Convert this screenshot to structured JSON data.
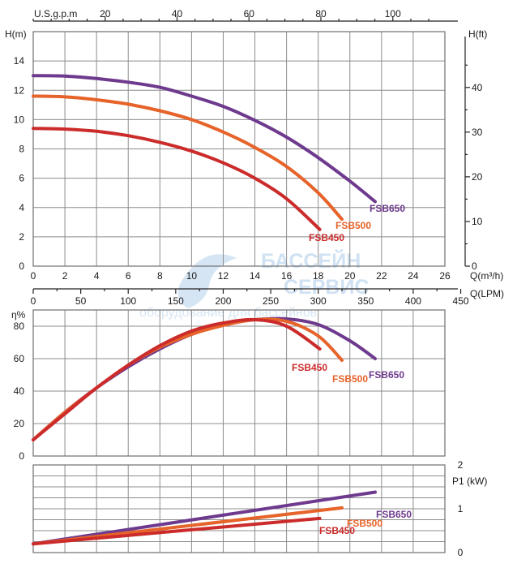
{
  "chart_data": [
    {
      "type": "line",
      "panel": "head",
      "xlabel": "Q(m³/h)",
      "xlim": [
        0,
        26
      ],
      "x_ticks": [
        0,
        2,
        4,
        6,
        8,
        10,
        12,
        14,
        16,
        18,
        20,
        22,
        24,
        26
      ],
      "ylabel": "H(m)",
      "ylim": [
        0,
        16
      ],
      "y_ticks": [
        0,
        2,
        4,
        6,
        8,
        10,
        12,
        14
      ],
      "y2label": "H(ft)",
      "y2_ticks": [
        0,
        10,
        20,
        30,
        40
      ],
      "top_axis_label": "U.S.g.p.m",
      "top_ticks": [
        20,
        40,
        60,
        80,
        100
      ],
      "bottom2_label": "Q(LPM)",
      "bottom2_ticks": [
        0,
        50,
        100,
        150,
        200,
        250,
        300,
        350,
        400,
        450
      ],
      "grid": true,
      "series": [
        {
          "name": "FSB650",
          "color": "#6e3a8e",
          "x": [
            0,
            2,
            4,
            6,
            8,
            10,
            12,
            14,
            16,
            18,
            20,
            21.6
          ],
          "y": [
            13.0,
            12.97,
            12.8,
            12.55,
            12.2,
            11.6,
            10.9,
            9.95,
            8.8,
            7.4,
            5.8,
            4.4
          ]
        },
        {
          "name": "FSB500",
          "color": "#e6632a",
          "x": [
            0,
            2,
            4,
            6,
            8,
            10,
            12,
            14,
            16,
            18,
            19.5
          ],
          "y": [
            11.6,
            11.55,
            11.35,
            11.05,
            10.6,
            10.0,
            9.15,
            8.1,
            6.8,
            5.0,
            3.2
          ]
        },
        {
          "name": "FSB450",
          "color": "#cc2b2b",
          "x": [
            0,
            2,
            4,
            6,
            8,
            10,
            12,
            14,
            16,
            18.1
          ],
          "y": [
            9.4,
            9.35,
            9.2,
            8.9,
            8.45,
            7.85,
            7.05,
            6.0,
            4.6,
            2.5
          ]
        }
      ],
      "labels": [
        "FSB650",
        "FSB500",
        "FSB450"
      ]
    },
    {
      "type": "line",
      "panel": "efficiency",
      "ylabel": "η%",
      "ylim": [
        0,
        90
      ],
      "y_ticks": [
        0,
        20,
        40,
        60,
        80
      ],
      "grid": true,
      "series": [
        {
          "name": "FSB650",
          "color": "#6e3a8e",
          "x": [
            0,
            2,
            4,
            6,
            8,
            10,
            12,
            14,
            16,
            18,
            20,
            21.6
          ],
          "y": [
            10,
            27,
            42,
            55,
            66,
            75,
            81,
            84,
            84.5,
            81,
            71,
            60
          ]
        },
        {
          "name": "FSB500",
          "color": "#e6632a",
          "x": [
            0,
            2,
            4,
            6,
            8,
            10,
            12,
            14,
            16,
            18,
            19.5
          ],
          "y": [
            10,
            27,
            42,
            56,
            67,
            75,
            80.5,
            84,
            83,
            74,
            59
          ]
        },
        {
          "name": "FSB450",
          "color": "#cc2b2b",
          "x": [
            0,
            2,
            4,
            6,
            8,
            10,
            12,
            14,
            16,
            18.1
          ],
          "y": [
            10,
            26,
            42,
            56,
            68,
            77,
            82,
            84,
            80,
            66
          ]
        }
      ],
      "labels": [
        "FSB450",
        "FSB500",
        "FSB650"
      ]
    },
    {
      "type": "line",
      "panel": "power",
      "ylabel": "P1 (kW)",
      "ylim": [
        0,
        2
      ],
      "y_ticks": [
        0,
        1,
        2
      ],
      "grid": true,
      "series": [
        {
          "name": "FSB650",
          "color": "#6e3a8e",
          "x": [
            0,
            21.6
          ],
          "y": [
            0.2,
            1.38
          ]
        },
        {
          "name": "FSB500",
          "color": "#e6632a",
          "x": [
            0,
            19.5
          ],
          "y": [
            0.2,
            1.02
          ]
        },
        {
          "name": "FSB450",
          "color": "#cc2b2b",
          "x": [
            0,
            18.1
          ],
          "y": [
            0.2,
            0.78
          ]
        }
      ],
      "labels": [
        "FSB650",
        "FSB500",
        "FSB450"
      ]
    }
  ],
  "watermark": {
    "line1": "БАССЕЙН",
    "line2": "СЕРВИС",
    "line3": "оборудование для бассейнов"
  }
}
